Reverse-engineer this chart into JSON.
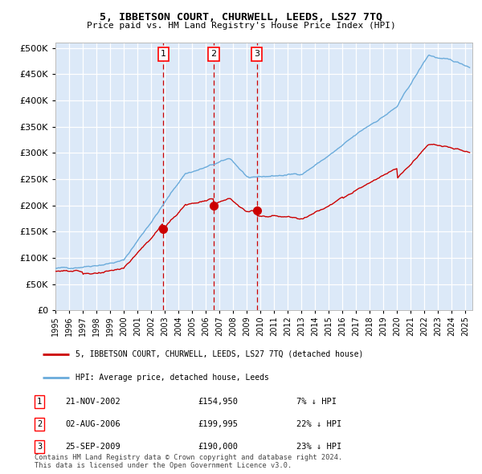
{
  "title": "5, IBBETSON COURT, CHURWELL, LEEDS, LS27 7TQ",
  "subtitle": "Price paid vs. HM Land Registry's House Price Index (HPI)",
  "legend_red": "5, IBBETSON COURT, CHURWELL, LEEDS, LS27 7TQ (detached house)",
  "legend_blue": "HPI: Average price, detached house, Leeds",
  "transactions": [
    {
      "num": 1,
      "date": "21-NOV-2002",
      "price": 154950,
      "year": 2002.89,
      "hpi_pct": "7% ↓ HPI"
    },
    {
      "num": 2,
      "date": "02-AUG-2006",
      "price": 199995,
      "year": 2006.58,
      "hpi_pct": "22% ↓ HPI"
    },
    {
      "num": 3,
      "date": "25-SEP-2009",
      "price": 190000,
      "year": 2009.73,
      "hpi_pct": "23% ↓ HPI"
    }
  ],
  "footer1": "Contains HM Land Registry data © Crown copyright and database right 2024.",
  "footer2": "This data is licensed under the Open Government Licence v3.0.",
  "ylim": [
    0,
    510000
  ],
  "yticks": [
    0,
    50000,
    100000,
    150000,
    200000,
    250000,
    300000,
    350000,
    400000,
    450000,
    500000
  ],
  "plot_bg": "#dce9f8",
  "grid_color": "#ffffff",
  "red_color": "#cc0000",
  "blue_color": "#6aabdb"
}
